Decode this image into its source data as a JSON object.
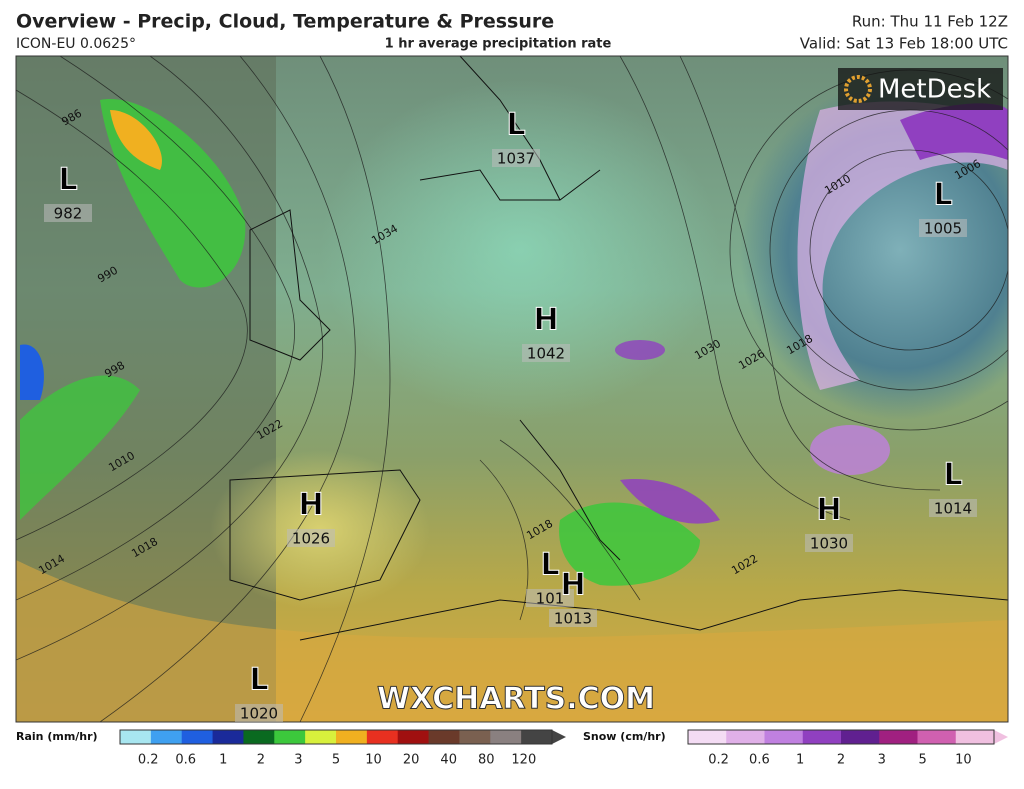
{
  "header": {
    "title": "Overview - Precip, Cloud, Temperature & Pressure",
    "model": "ICON-EU 0.0625°",
    "subtitle": "1 hr average precipitation rate",
    "run": "Run: Thu 11 Feb 12Z",
    "valid": "Valid: Sat 13 Feb 18:00 UTC"
  },
  "logo": "MetDesk",
  "watermark": "WXCHARTS.COM",
  "pressure_centers": [
    {
      "type": "L",
      "value": 982
    },
    {
      "type": "L",
      "value": 1037
    },
    {
      "type": "H",
      "value": 1042
    },
    {
      "type": "L",
      "value": 1005
    },
    {
      "type": "H",
      "value": 1026
    },
    {
      "type": "L",
      "value": 1014
    },
    {
      "type": "H",
      "value": 1030
    },
    {
      "type": "L",
      "value": 101
    },
    {
      "type": "H",
      "value": 1013
    },
    {
      "type": "L",
      "value": 1020
    }
  ],
  "isobar_labels": [
    986,
    990,
    998,
    1010,
    1014,
    1018,
    1022,
    1034,
    1030,
    1026,
    1018,
    1010,
    1006,
    1022,
    1018
  ],
  "legend": {
    "rain": {
      "label": "Rain (mm/hr)",
      "ticks": [
        0.2,
        0.6,
        1,
        2,
        3,
        5,
        10,
        20,
        40,
        80,
        120
      ],
      "colors": [
        "#a8e6f0",
        "#3fa0f0",
        "#1f5fe0",
        "#1a2a9a",
        "#0a6a20",
        "#3cc83c",
        "#d8f03c",
        "#f0b020",
        "#e83020",
        "#a01010",
        "#6a3a2a",
        "#7a6050",
        "#8a8080",
        "#444444"
      ]
    },
    "snow": {
      "label": "Snow (cm/hr)",
      "ticks": [
        0.2,
        0.6,
        1,
        2,
        3,
        5,
        10
      ],
      "colors": [
        "#f4dcf4",
        "#e0b0e8",
        "#c080e0",
        "#9040c0",
        "#602090",
        "#a02080",
        "#d060b0",
        "#f0c0e0"
      ]
    }
  }
}
